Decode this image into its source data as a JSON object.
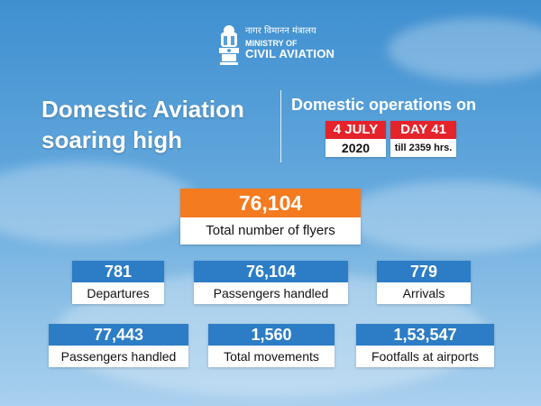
{
  "header": {
    "hindi": "नागर विमानन मंत्रालय",
    "ministry_line1": "MINISTRY OF",
    "ministry_line2": "CIVIL AVIATION",
    "headline_line1": "Domestic Aviation",
    "headline_line2": "soaring high",
    "ops_title": "Domestic operations on",
    "date": "4 JULY",
    "year": "2020",
    "day": "DAY 41",
    "day_sub": "till 2359 hrs."
  },
  "total": {
    "value": "76,104",
    "label": "Total number of flyers"
  },
  "stats_row1": [
    {
      "value": "781",
      "label": "Departures"
    },
    {
      "value": "76,104",
      "label": "Passengers handled"
    },
    {
      "value": "779",
      "label": "Arrivals"
    }
  ],
  "stats_row2": [
    {
      "value": "77,443",
      "label": "Passengers handled"
    },
    {
      "value": "1,560",
      "label": "Total movements"
    },
    {
      "value": "1,53,547",
      "label": "Footfalls at airports"
    }
  ],
  "colors": {
    "sky": "#4f9bd8",
    "accent_orange": "#f47b20",
    "accent_blue": "#2c7dc6",
    "accent_red": "#e5232b"
  },
  "icons": [
    "ashoka-emblem-icon"
  ]
}
